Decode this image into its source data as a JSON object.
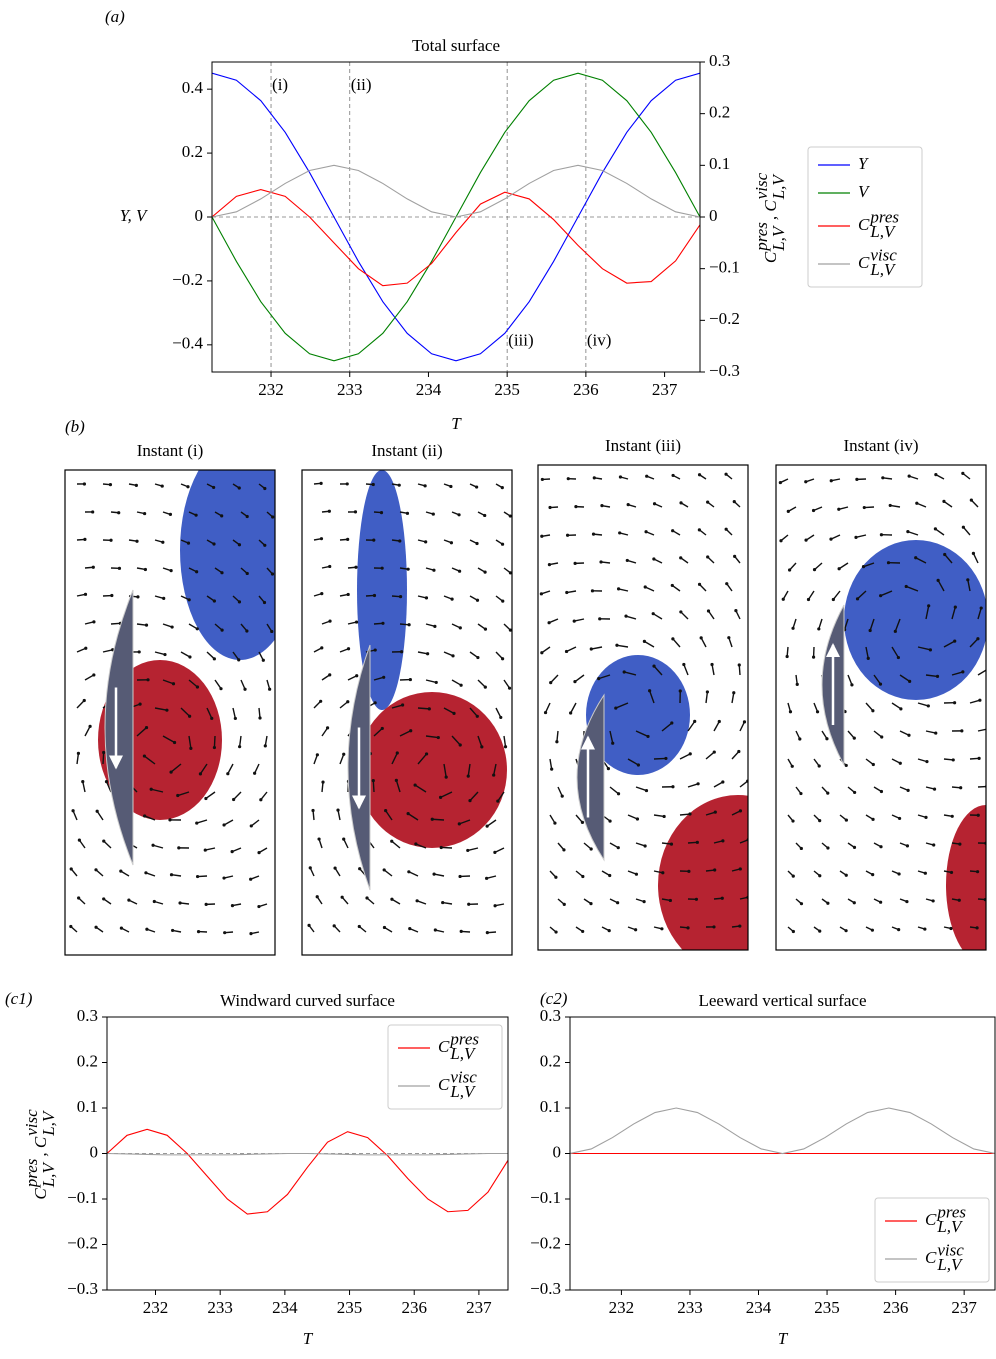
{
  "chart_data": [
    {
      "panel": "(a)",
      "type": "line",
      "title": "Total surface",
      "xlabel": "T",
      "ylabel": "Y, V",
      "y2label": [
        {
          "text": "C",
          "superscript": "pres",
          "subscript": "L,V"
        },
        {
          "text": ", C",
          "superscript": "visc",
          "subscript": "L,V"
        }
      ],
      "x": [
        231.25,
        231.56,
        231.87,
        232.18,
        232.49,
        232.8,
        233.11,
        233.42,
        233.73,
        234.04,
        234.35,
        234.66,
        234.97,
        235.28,
        235.59,
        235.9,
        236.21,
        236.52,
        236.83,
        237.14,
        237.45
      ],
      "xlim": [
        231.25,
        237.45
      ],
      "xticks": [
        232,
        233,
        234,
        235,
        236,
        237
      ],
      "ylim": [
        -0.485,
        0.485
      ],
      "yticks": [
        0.4,
        0.2,
        0,
        {
          "value": -0.2,
          "label": "−0.2"
        },
        {
          "value": -0.4,
          "label": "−0.4"
        }
      ],
      "y2lim": [
        -0.3,
        0.3
      ],
      "y2ticks": [
        0.3,
        0.2,
        0.1,
        0,
        {
          "value": -0.1,
          "label": "−0.1"
        },
        {
          "value": -0.2,
          "label": "−0.2"
        },
        {
          "value": -0.3,
          "label": "−0.3"
        }
      ],
      "hlines": [
        0
      ],
      "vlines": [
        232,
        233,
        235,
        236
      ],
      "annotations": [
        {
          "text": "(i)",
          "x": 232,
          "y": 0.41
        },
        {
          "text": "(ii)",
          "x": 233,
          "y": 0.41
        },
        {
          "text": "(iii)",
          "x": 235,
          "y": -0.39
        },
        {
          "text": "(iv)",
          "x": 236,
          "y": -0.39
        }
      ],
      "legend": "outside right",
      "series": [
        {
          "name": "Y",
          "color": "#0000ff",
          "values": [
            0.45,
            0.428,
            0.364,
            0.265,
            0.139,
            0,
            -0.139,
            -0.265,
            -0.364,
            -0.428,
            -0.45,
            -0.428,
            -0.364,
            -0.265,
            -0.139,
            0,
            0.139,
            0.265,
            0.364,
            0.428,
            0.45
          ]
        },
        {
          "name": "V",
          "color": "#008000",
          "values": [
            0,
            -0.139,
            -0.265,
            -0.364,
            -0.428,
            -0.45,
            -0.428,
            -0.364,
            -0.265,
            -0.139,
            0,
            0.139,
            0.265,
            0.364,
            0.428,
            0.45,
            0.428,
            0.364,
            0.265,
            0.139,
            0
          ]
        },
        {
          "name": "C",
          "superscript": "pres",
          "subscript": "L,V",
          "color": "#ff0000",
          "axis": "y2",
          "values": [
            0,
            0.04,
            0.053,
            0.04,
            0,
            -0.05,
            -0.1,
            -0.133,
            -0.128,
            -0.09,
            -0.03,
            0.025,
            0.048,
            0.035,
            -0.005,
            -0.055,
            -0.1,
            -0.128,
            -0.125,
            -0.085,
            -0.015
          ]
        },
        {
          "name": "C",
          "superscript": "visc",
          "subscript": "L,V",
          "color": "#a0a0a0",
          "axis": "y2",
          "values": [
            0,
            0.01,
            0.035,
            0.065,
            0.09,
            0.1,
            0.09,
            0.065,
            0.035,
            0.01,
            0,
            0.01,
            0.035,
            0.065,
            0.09,
            0.1,
            0.09,
            0.065,
            0.035,
            0.01,
            0
          ]
        }
      ]
    },
    {
      "panel": "(c1)",
      "type": "line",
      "title": "Windward curved surface",
      "xlabel": "T",
      "ylabel": [
        {
          "text": "C",
          "superscript": "pres",
          "subscript": "L,V"
        },
        {
          "text": ", C",
          "superscript": "visc",
          "subscript": "L,V"
        }
      ],
      "x": [
        231.25,
        231.56,
        231.87,
        232.18,
        232.49,
        232.8,
        233.11,
        233.42,
        233.73,
        234.04,
        234.35,
        234.66,
        234.97,
        235.28,
        235.59,
        235.9,
        236.21,
        236.52,
        236.83,
        237.14,
        237.45
      ],
      "xlim": [
        231.25,
        237.45
      ],
      "xticks": [
        232,
        233,
        234,
        235,
        236,
        237
      ],
      "ylim": [
        -0.3,
        0.3
      ],
      "yticks": [
        0.3,
        0.2,
        0.1,
        0,
        {
          "value": -0.1,
          "label": "−0.1"
        },
        {
          "value": -0.2,
          "label": "−0.2"
        },
        {
          "value": -0.3,
          "label": "−0.3"
        }
      ],
      "hlines": [
        0
      ],
      "legend": "upper right",
      "series": [
        {
          "name": "C",
          "superscript": "pres",
          "subscript": "L,V",
          "color": "#ff0000",
          "values": [
            0,
            0.04,
            0.053,
            0.04,
            0,
            -0.05,
            -0.1,
            -0.133,
            -0.128,
            -0.09,
            -0.03,
            0.025,
            0.048,
            0.035,
            -0.005,
            -0.055,
            -0.1,
            -0.128,
            -0.125,
            -0.085,
            -0.015
          ]
        },
        {
          "name": "C",
          "superscript": "visc",
          "subscript": "L,V",
          "color": "#a0a0a0",
          "values": [
            0,
            -0.001,
            -0.002,
            -0.003,
            -0.003,
            -0.003,
            -0.003,
            -0.002,
            -0.001,
            0,
            0,
            -0.001,
            -0.002,
            -0.003,
            -0.003,
            -0.003,
            -0.003,
            -0.002,
            -0.001,
            0,
            0
          ]
        }
      ]
    },
    {
      "panel": "(c2)",
      "type": "line",
      "title": "Leeward vertical surface",
      "xlabel": "T",
      "x": [
        231.25,
        231.56,
        231.87,
        232.18,
        232.49,
        232.8,
        233.11,
        233.42,
        233.73,
        234.04,
        234.35,
        234.66,
        234.97,
        235.28,
        235.59,
        235.9,
        236.21,
        236.52,
        236.83,
        237.14,
        237.45
      ],
      "xlim": [
        231.25,
        237.45
      ],
      "xticks": [
        232,
        233,
        234,
        235,
        236,
        237
      ],
      "ylim": [
        -0.3,
        0.3
      ],
      "yticks": [
        0.3,
        0.2,
        0.1,
        0,
        {
          "value": -0.1,
          "label": "−0.1"
        },
        {
          "value": -0.2,
          "label": "−0.2"
        },
        {
          "value": -0.3,
          "label": "−0.3"
        }
      ],
      "legend": "lower right",
      "series": [
        {
          "name": "C",
          "superscript": "pres",
          "subscript": "L,V",
          "color": "#ff0000",
          "values": [
            0,
            0,
            0,
            0,
            0,
            0,
            0,
            0,
            0,
            0,
            0,
            0,
            0,
            0,
            0,
            0,
            0,
            0,
            0,
            0,
            0
          ]
        },
        {
          "name": "C",
          "superscript": "visc",
          "subscript": "L,V",
          "color": "#a0a0a0",
          "values": [
            0,
            0.01,
            0.035,
            0.065,
            0.09,
            0.1,
            0.09,
            0.065,
            0.035,
            0.01,
            0,
            0.01,
            0.035,
            0.065,
            0.09,
            0.1,
            0.09,
            0.065,
            0.035,
            0.01,
            0
          ]
        }
      ]
    }
  ],
  "panel_b": {
    "label": "(b)",
    "titles": [
      "Instant (i)",
      "Instant (ii)",
      "Instant (iii)",
      "Instant (iv)"
    ]
  }
}
